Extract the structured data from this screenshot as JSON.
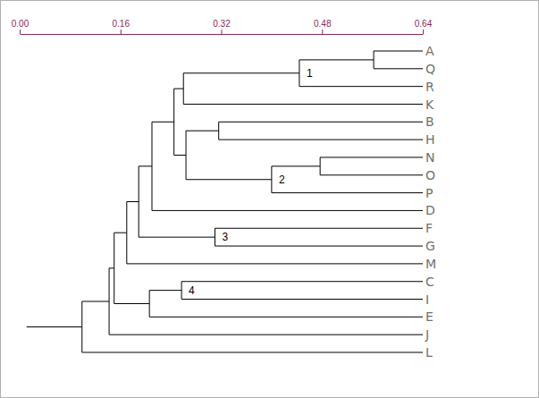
{
  "chart_data": {
    "type": "dendrogram",
    "xlim": [
      0,
      0.64
    ],
    "xticks": [
      {
        "value": 0,
        "label": "0.00"
      },
      {
        "value": 0.16,
        "label": "0.16"
      },
      {
        "value": 0.32,
        "label": "0.32"
      },
      {
        "value": 0.48,
        "label": "0.48"
      },
      {
        "value": 0.64,
        "label": "0.64"
      }
    ],
    "tree": {
      "height": 0.099,
      "children": [
        {
          "height": 0.142,
          "children": [
            {
              "height": 0.15,
              "children": [
                {
                  "height": 0.17,
                  "children": [
                    {
                      "height": 0.189,
                      "children": [
                        {
                          "height": 0.21,
                          "children": [
                            {
                              "height": 0.245,
                              "children": [
                                {
                                  "height": 0.26,
                                  "children": [
                                    {
                                      "height": 0.444,
                                      "label": "1",
                                      "children": [
                                        {
                                          "height": 0.562,
                                          "children": [
                                            {
                                              "name": "A"
                                            },
                                            {
                                              "name": "Q"
                                            }
                                          ]
                                        },
                                        {
                                          "name": "R"
                                        }
                                      ]
                                    },
                                    {
                                      "name": "K"
                                    }
                                  ]
                                },
                                {
                                  "height": 0.264,
                                  "children": [
                                    {
                                      "height": 0.316,
                                      "children": [
                                        {
                                          "name": "B"
                                        },
                                        {
                                          "name": "H"
                                        }
                                      ]
                                    },
                                    {
                                      "height": 0.4,
                                      "label": "2",
                                      "children": [
                                        {
                                          "height": 0.477,
                                          "children": [
                                            {
                                              "name": "N"
                                            },
                                            {
                                              "name": "O"
                                            }
                                          ]
                                        },
                                        {
                                          "name": "P"
                                        }
                                      ]
                                    }
                                  ]
                                }
                              ]
                            },
                            {
                              "name": "D"
                            }
                          ]
                        },
                        {
                          "height": 0.31,
                          "label": "3",
                          "children": [
                            {
                              "name": "F"
                            },
                            {
                              "name": "G"
                            }
                          ]
                        }
                      ]
                    },
                    {
                      "name": "M"
                    }
                  ]
                },
                {
                  "height": 0.206,
                  "children": [
                    {
                      "height": 0.257,
                      "label": "4",
                      "children": [
                        {
                          "name": "C"
                        },
                        {
                          "name": "I"
                        }
                      ]
                    },
                    {
                      "name": "E"
                    }
                  ]
                }
              ]
            },
            {
              "name": "J"
            }
          ]
        },
        {
          "name": "L"
        }
      ]
    }
  }
}
